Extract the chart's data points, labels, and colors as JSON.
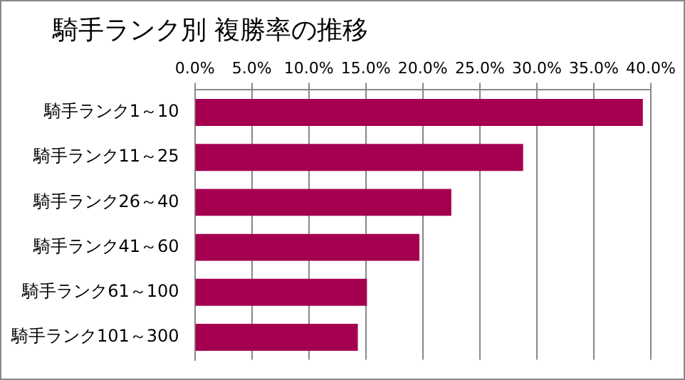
{
  "chart_data": {
    "type": "bar",
    "orientation": "horizontal",
    "title": "騎手ランク別 複勝率の推移",
    "categories": [
      "騎手ランク1～10",
      "騎手ランク11～25",
      "騎手ランク26～40",
      "騎手ランク41～60",
      "騎手ランク61～100",
      "騎手ランク101～300"
    ],
    "values": [
      39.3,
      28.8,
      22.5,
      19.7,
      15.1,
      14.3
    ],
    "color": "#a50050",
    "xlim": [
      0,
      40
    ],
    "xticks": [
      {
        "value": 0,
        "label": "0.0%"
      },
      {
        "value": 5,
        "label": "5.0%"
      },
      {
        "value": 10,
        "label": "10.0%"
      },
      {
        "value": 15,
        "label": "15.0%"
      },
      {
        "value": 20,
        "label": "20.0%"
      },
      {
        "value": 25,
        "label": "25.0%"
      },
      {
        "value": 30,
        "label": "30.0%"
      },
      {
        "value": 35,
        "label": "35.0%"
      },
      {
        "value": 40,
        "label": "40.0%"
      }
    ],
    "grid": "x",
    "legend": false
  }
}
